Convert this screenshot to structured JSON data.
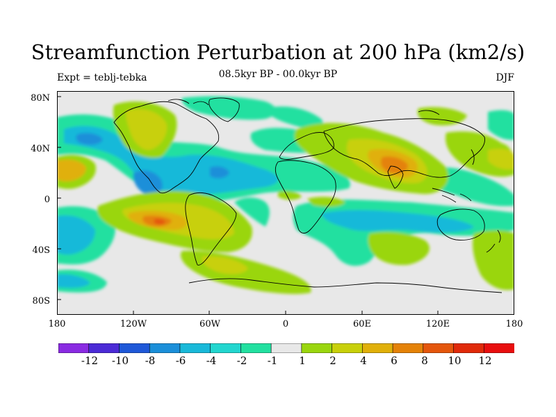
{
  "header": {
    "title": "Streamfunction Perturbation at 200 hPa (km2/s)",
    "subtitle": "08.5kyr BP - 00.0kyr BP",
    "left_label": "Expt = teblj-tebka",
    "right_label": "DJF"
  },
  "axes": {
    "lat_labels": [
      "80N",
      "40N",
      "0",
      "40S",
      "80S"
    ],
    "lon_labels": [
      "180",
      "120W",
      "60W",
      "0",
      "60E",
      "120E",
      "180"
    ]
  },
  "colorbar": {
    "labels": [
      "-12",
      "-10",
      "-8",
      "-6",
      "-4",
      "-2",
      "-1",
      "1",
      "2",
      "4",
      "6",
      "8",
      "10",
      "12"
    ],
    "colors": [
      "#8a2be2",
      "#4b2bd6",
      "#1f58d8",
      "#1b8fd9",
      "#19b9d9",
      "#22d6cf",
      "#22e0a0",
      "#e8e8e8",
      "#9ad60e",
      "#c8d00a",
      "#e0b00a",
      "#e48208",
      "#e4560c",
      "#e02a0a",
      "#e80e0e"
    ]
  },
  "map_style": {
    "background": "#e8e8e8",
    "coast_color": "#000000"
  }
}
